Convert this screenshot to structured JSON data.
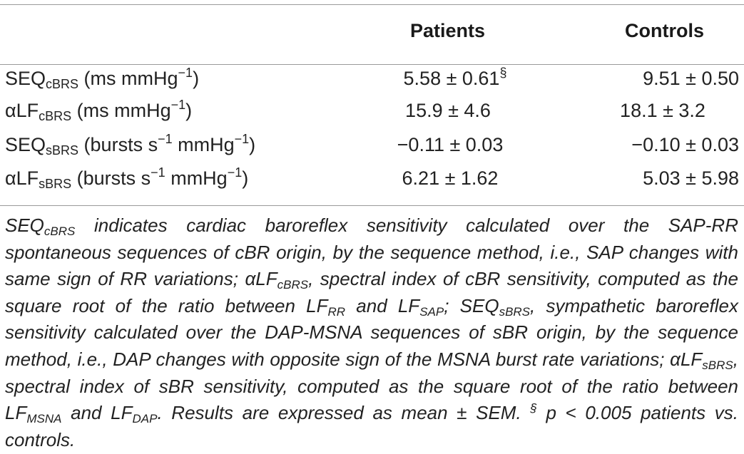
{
  "table": {
    "columns": [
      "Patients",
      "Controls"
    ],
    "rows": [
      {
        "label_main": "SEQ",
        "label_sub": "cBRS",
        "unit_a": " (ms mmHg",
        "unit_a_sup": "−1",
        "unit_b": "",
        "unit_b_sup": "",
        "unit_close": ")",
        "patients_value": "5.58 ± 0.61",
        "patients_mark": "§",
        "controls_value": "9.51 ± 0.50"
      },
      {
        "label_main": "αLF",
        "label_sub": "cBRS",
        "unit_a": " (ms mmHg",
        "unit_a_sup": "−1",
        "unit_b": "",
        "unit_b_sup": "",
        "unit_close": ")",
        "patients_value": "15.9 ± 4.6",
        "patients_mark": "",
        "controls_value": "18.1 ± 3.2"
      },
      {
        "label_main": "SEQ",
        "label_sub": "sBRS",
        "unit_a": " (bursts s",
        "unit_a_sup": "−1",
        "unit_b": " mmHg",
        "unit_b_sup": "−1",
        "unit_close": ")",
        "patients_value": "−0.11 ± 0.03",
        "patients_mark": "",
        "controls_value": "−0.10 ± 0.03"
      },
      {
        "label_main": "αLF",
        "label_sub": "sBRS",
        "unit_a": " (bursts s",
        "unit_a_sup": "−1",
        "unit_b": " mmHg",
        "unit_b_sup": "−1",
        "unit_close": ")",
        "patients_value": "6.21 ± 1.62",
        "patients_mark": "",
        "controls_value": "5.03 ± 5.98"
      }
    ]
  },
  "footnote": {
    "p1_a": "SEQ",
    "p1_a_sub": "cBRS",
    "p1_b": " indicates cardiac baroreflex sensitivity calculated over the SAP-RR spontaneous sequences of cBR origin, by the sequence method, i.e., SAP changes with same sign of RR variations; ",
    "p2_a": "αLF",
    "p2_a_sub": "cBRS",
    "p2_b": ", spectral index of cBR sensitivity, computed as the square root of the ratio between LF",
    "p2_c_sub": "RR",
    "p2_d": " and LF",
    "p2_d_sub": "SAP",
    "p2_e": "; ",
    "p3_a": "SEQ",
    "p3_a_sub": "sBRS",
    "p3_b": ", sympathetic baroreflex sensitivity calculated over the DAP-MSNA sequences of sBR origin, by the sequence method, i.e., DAP changes with opposite sign of the MSNA burst rate variations; ",
    "p4_a": "αLF",
    "p4_a_sub": "sBRS",
    "p4_b": ", spectral index of sBR sensitivity, computed as the square root of the ratio between LF",
    "p4_c_sub": "MSNA",
    "p4_d": " and LF",
    "p4_d_sub": "DAP",
    "p4_e": ". Results are expressed as mean ± SEM. ",
    "mark": "§",
    "p5": " p < 0.005 patients vs. controls."
  }
}
